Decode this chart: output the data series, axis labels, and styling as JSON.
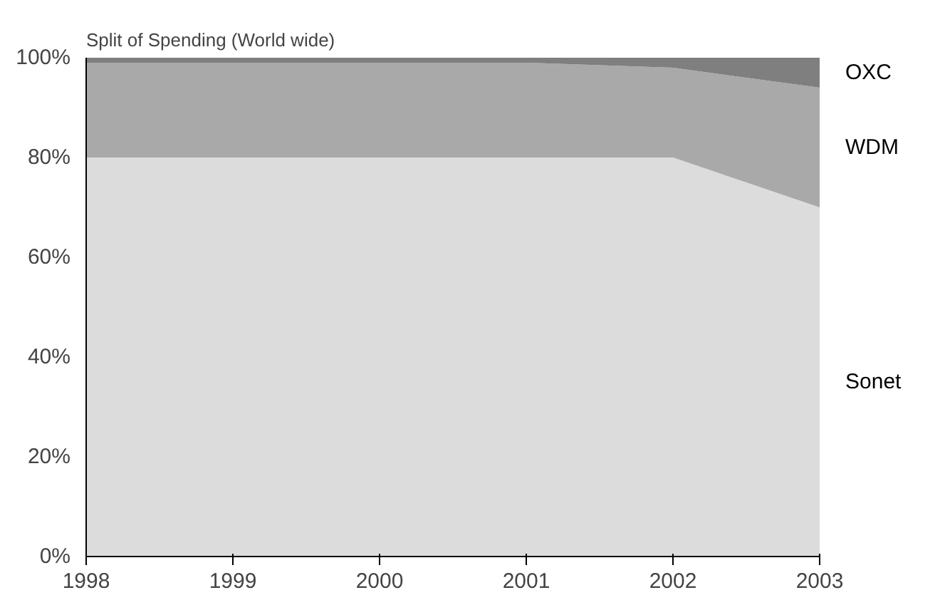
{
  "chart_data": {
    "type": "area",
    "stacked": true,
    "title": "Split of Spending (World wide)",
    "x": [
      1998,
      1999,
      2000,
      2001,
      2002,
      2003
    ],
    "series": [
      {
        "name": "Sonet",
        "color": "#dcdcdc",
        "values": [
          80,
          80,
          80,
          80,
          80,
          70
        ]
      },
      {
        "name": "WDM",
        "color": "#a9a9a9",
        "values": [
          19,
          19,
          19,
          19,
          18,
          24
        ]
      },
      {
        "name": "OXC",
        "color": "#7f7f7f",
        "values": [
          1,
          1,
          1,
          1,
          2,
          6
        ]
      }
    ],
    "xlim": [
      1998,
      2003
    ],
    "ylim": [
      0,
      100
    ],
    "xticks": [
      1998,
      1999,
      2000,
      2001,
      2002,
      2003
    ],
    "yticks": [
      {
        "value": 0,
        "label": "0%"
      },
      {
        "value": 20,
        "label": "20%"
      },
      {
        "value": 40,
        "label": "40%"
      },
      {
        "value": 60,
        "label": "60%"
      },
      {
        "value": 80,
        "label": "80%"
      },
      {
        "value": 100,
        "label": "100%"
      }
    ],
    "grid": false
  }
}
